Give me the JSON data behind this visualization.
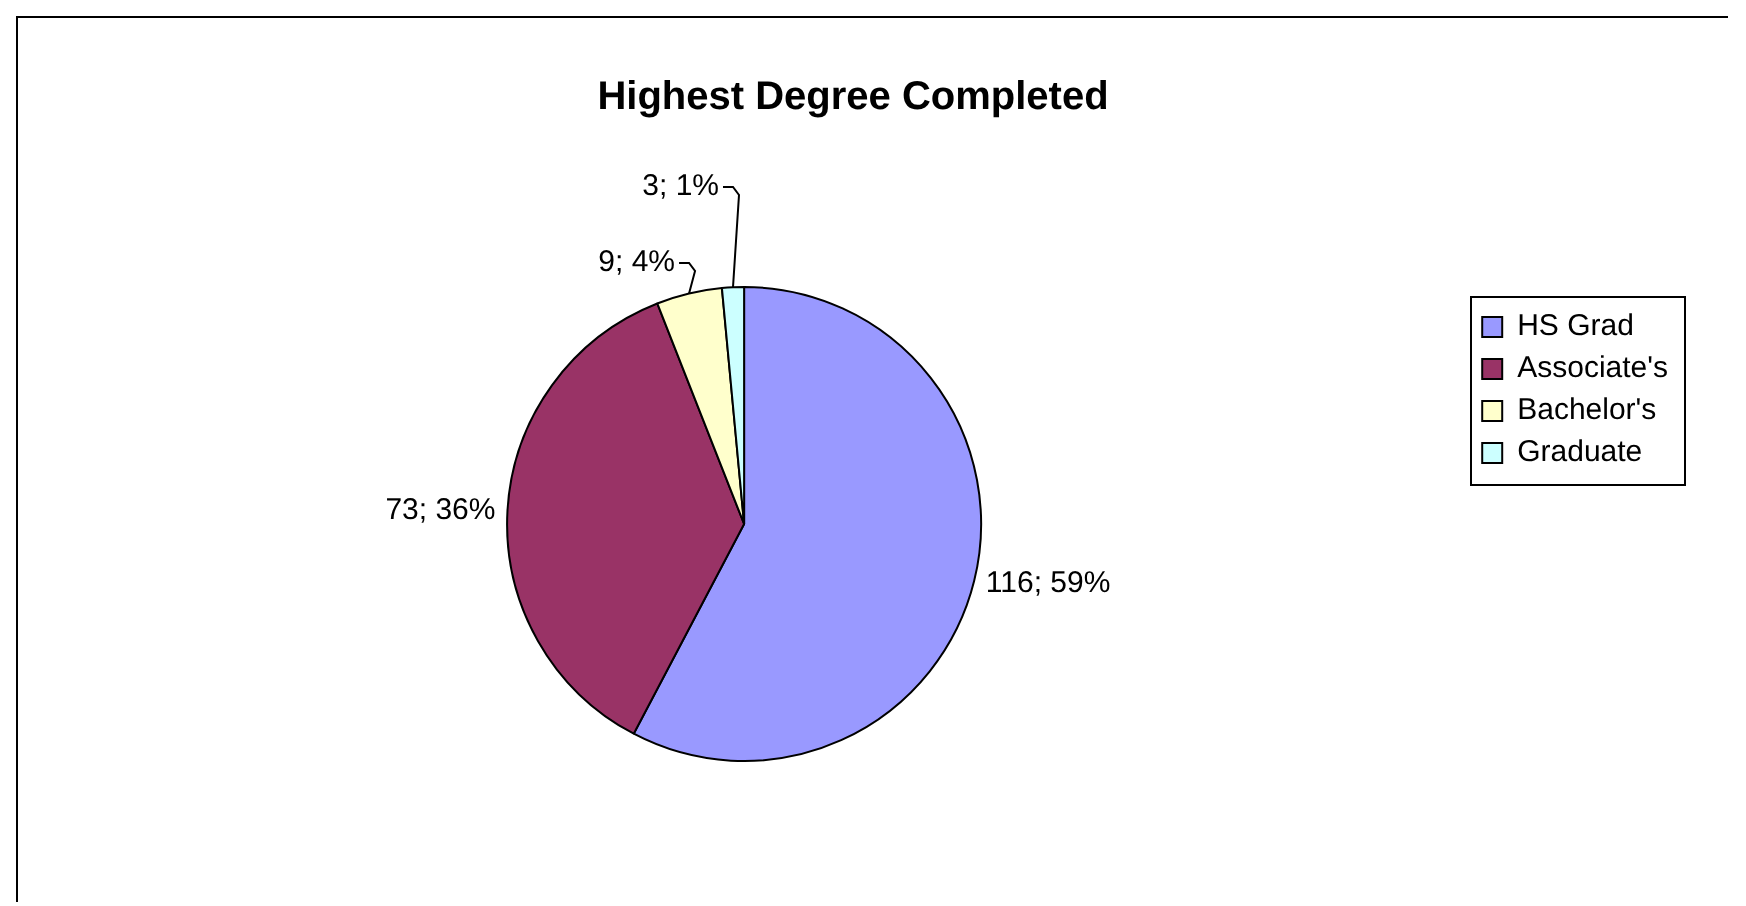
{
  "chart_data": {
    "type": "pie",
    "title": "Highest Degree Completed",
    "categories": [
      "HS Grad",
      "Associate's",
      "Bachelor's",
      "Graduate"
    ],
    "values": [
      116,
      73,
      9,
      3
    ],
    "colors": [
      "#9999ff",
      "#993366",
      "#ffffcc",
      "#ccffff"
    ],
    "value_labels": [
      "116; 59%",
      "73; 36%",
      "9; 4%",
      "3; 1%"
    ],
    "legend": "right"
  }
}
